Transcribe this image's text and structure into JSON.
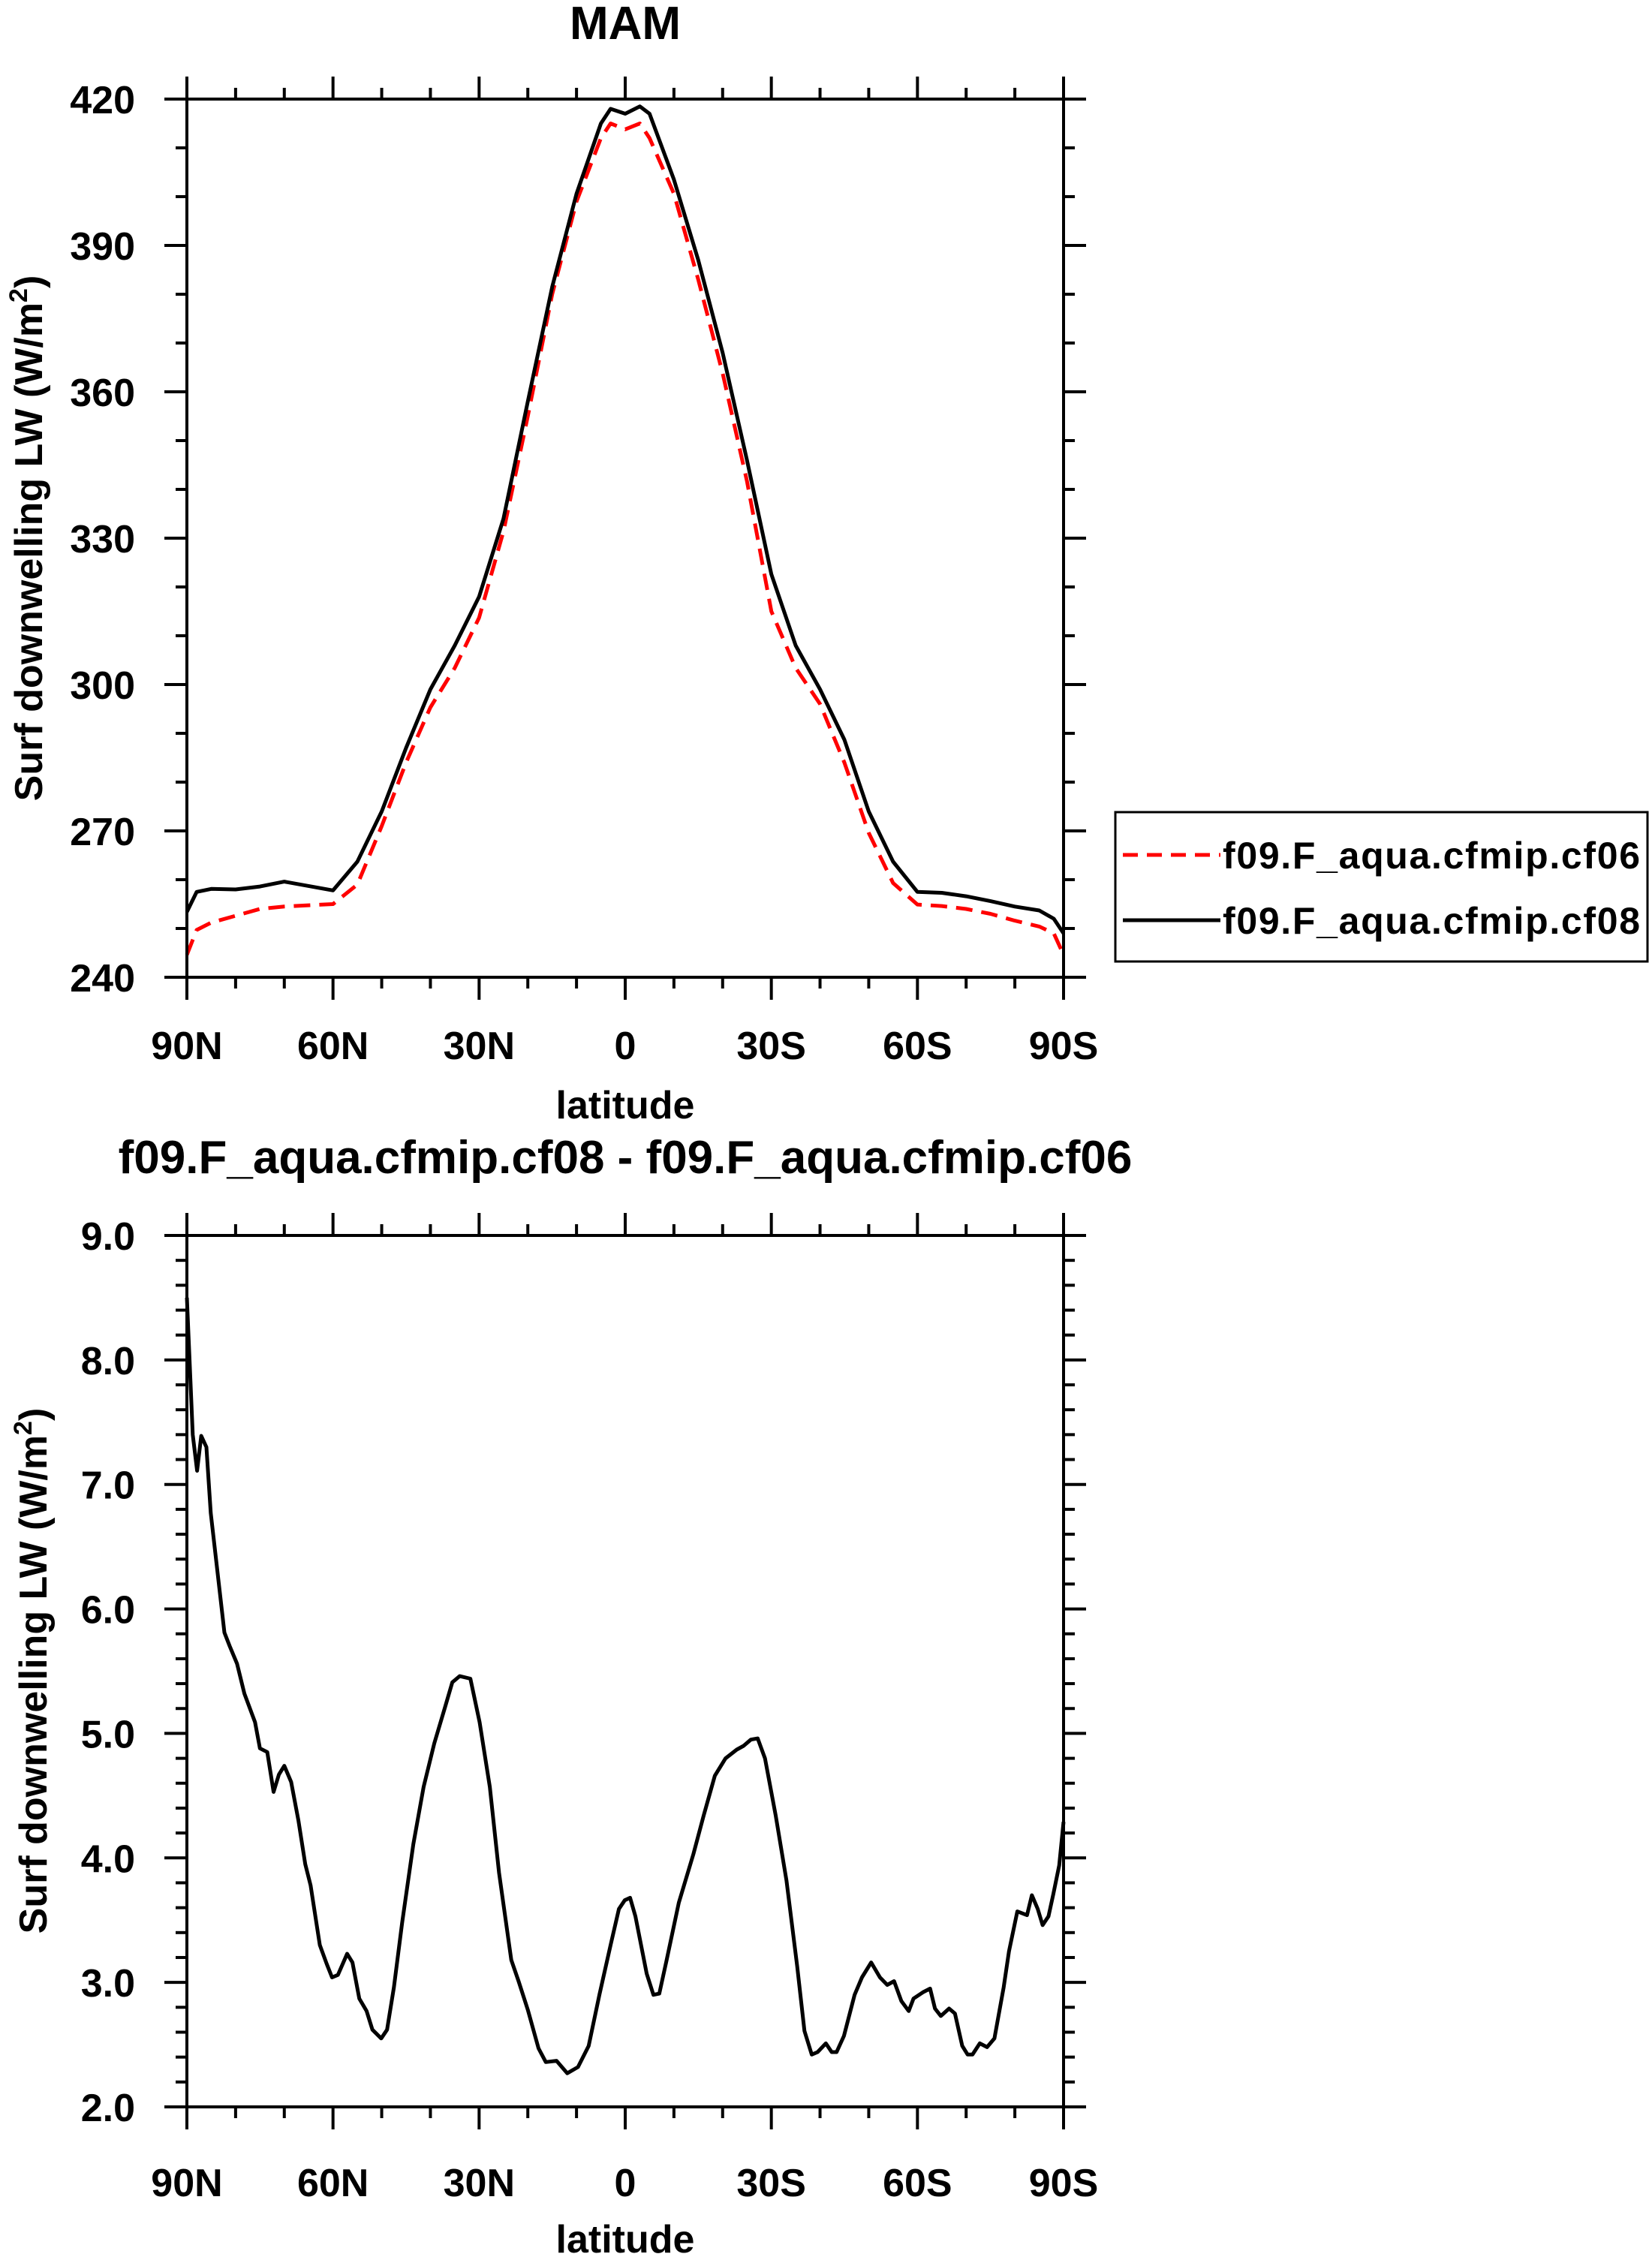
{
  "chart_data": [
    {
      "type": "line",
      "title": "MAM",
      "xlabel": "latitude",
      "ylabel": {
        "text": "Surf downwelling LW (W/m",
        "sup": "2",
        "end": ")"
      },
      "xlim": [
        90,
        -90
      ],
      "ylim": [
        240,
        420
      ],
      "xticks": [
        90,
        60,
        30,
        0,
        -30,
        -60,
        -90
      ],
      "xtick_labels": [
        "90N",
        "60N",
        "30N",
        "0",
        "30S",
        "60S",
        "90S"
      ],
      "yticks": [
        240,
        270,
        300,
        330,
        360,
        390,
        420
      ],
      "ytick_labels": [
        "240",
        "270",
        "300",
        "330",
        "360",
        "390",
        "420"
      ],
      "x_minor_step": 10,
      "y_minor_step": 10,
      "grid": false,
      "legend": {
        "placement": "right-outside",
        "entries": [
          "f09.F_aqua.cfmip.cf06",
          "f09.F_aqua.cfmip.cf08"
        ]
      },
      "series": [
        {
          "name": "f09.F_aqua.cfmip.cf06",
          "color": "#ff0000",
          "style": "dashed",
          "x": [
            90,
            88,
            85,
            80,
            75,
            70,
            60,
            55,
            50,
            45,
            40,
            35,
            30,
            25,
            20,
            15,
            10,
            5,
            3,
            0,
            -3,
            -5,
            -10,
            -15,
            -20,
            -25,
            -30,
            -35,
            -40,
            -45,
            -50,
            -55,
            -60,
            -65,
            -70,
            -75,
            -80,
            -85,
            -88,
            -90
          ],
          "y": [
            244.6,
            249.7,
            251.2,
            252.6,
            254.0,
            254.5,
            255.0,
            259.0,
            271.0,
            284.0,
            295.3,
            303.4,
            313.7,
            331.4,
            355.0,
            380.0,
            399.0,
            412.0,
            415.0,
            413.8,
            415.0,
            412.0,
            400.6,
            383.0,
            363.8,
            341.7,
            315.0,
            303.4,
            296.0,
            284.0,
            269.6,
            259.3,
            254.9,
            254.6,
            254.0,
            253.0,
            251.6,
            250.4,
            249.0,
            244.6
          ]
        },
        {
          "name": "f09.F_aqua.cfmip.cf08",
          "color": "#000000",
          "style": "solid",
          "x": [
            90,
            88,
            85,
            80,
            75,
            70,
            60,
            55,
            50,
            45,
            40,
            35,
            30,
            25,
            20,
            15,
            10,
            5,
            3,
            0,
            -3,
            -5,
            -10,
            -15,
            -20,
            -25,
            -30,
            -35,
            -40,
            -45,
            -50,
            -55,
            -60,
            -65,
            -70,
            -75,
            -80,
            -85,
            -88,
            -90
          ],
          "y": [
            253.4,
            257.5,
            258.1,
            258.0,
            258.6,
            259.6,
            257.8,
            263.7,
            274.0,
            287.0,
            299.0,
            308.0,
            318.0,
            334.0,
            358.0,
            381.5,
            400.6,
            415.0,
            418.0,
            417.0,
            418.5,
            417.0,
            403.5,
            387.0,
            368.0,
            346.0,
            322.6,
            308.0,
            299.0,
            288.7,
            274.0,
            263.7,
            257.5,
            257.3,
            256.6,
            255.6,
            254.5,
            253.7,
            252.0,
            249.0
          ]
        }
      ]
    },
    {
      "type": "line",
      "title": "f09.F_aqua.cfmip.cf08 - f09.F_aqua.cfmip.cf06",
      "xlabel": "latitude",
      "ylabel": {
        "text": "Surf downwelling LW (W/m",
        "sup": "2",
        "end": ")"
      },
      "xlim": [
        90,
        -90
      ],
      "ylim": [
        2.0,
        9.0
      ],
      "xticks": [
        90,
        60,
        30,
        0,
        -30,
        -60,
        -90
      ],
      "xtick_labels": [
        "90N",
        "60N",
        "30N",
        "0",
        "30S",
        "60S",
        "90S"
      ],
      "yticks": [
        2,
        3,
        4,
        5,
        6,
        7,
        8,
        9
      ],
      "ytick_labels": [
        "2.0",
        "3.0",
        "4.0",
        "5.0",
        "6.0",
        "7.0",
        "8.0",
        "9.0"
      ],
      "x_minor_step": 10,
      "y_minor_step": 0.2,
      "grid": false,
      "series": [
        {
          "name": "f09.F_aqua.cfmip.cf08 - f09.F_aqua.cfmip.cf06",
          "color": "#000000",
          "style": "solid",
          "x": [
            90,
            88.8,
            87.9,
            87.05,
            86,
            85.1,
            82.3,
            81.2,
            79.7,
            78.2,
            76,
            75,
            73.5,
            72.2,
            71.1,
            70,
            68.6,
            67.1,
            65.7,
            64.6,
            62.7,
            61.3,
            60.2,
            59,
            57.1,
            56,
            54.6,
            53.1,
            51.9,
            50.1,
            48.9,
            47.5,
            45.8,
            43.5,
            41.4,
            39.2,
            37,
            35.5,
            34,
            31.8,
            29.9,
            27.8,
            25.9,
            23.4,
            21.9,
            20,
            17.8,
            16.3,
            14.1,
            11.9,
            9.7,
            7.5,
            5.3,
            3.0,
            1.3,
            0.1,
            -1,
            -2.1,
            -4.4,
            -5.8,
            -7,
            -8.5,
            -11,
            -14,
            -16.1,
            -18.4,
            -20.6,
            -22.9,
            -24.3,
            -25.8,
            -27.2,
            -28.7,
            -30.9,
            -33.1,
            -35.3,
            -36.8,
            -38.3,
            -39.5,
            -41.2,
            -42.4,
            -43.4,
            -44.9,
            -47.1,
            -48.6,
            -50.5,
            -52.3,
            -53.8,
            -55.2,
            -56.7,
            -58.2,
            -59.2,
            -61.1,
            -62.6,
            -63.6,
            -64.8,
            -66.5,
            -67.7,
            -69.2,
            -70.3,
            -71.3,
            -72.8,
            -74.3,
            -75.8,
            -77.7,
            -78.8,
            -80.5,
            -82.5,
            -83.5,
            -84.7,
            -85.7,
            -86.9,
            -87.9,
            -89.1,
            -90
          ],
          "y": [
            8.5,
            7.4,
            7.11,
            7.39,
            7.3,
            6.77,
            5.81,
            5.7,
            5.56,
            5.32,
            5.09,
            4.88,
            4.85,
            4.53,
            4.67,
            4.74,
            4.61,
            4.3,
            3.95,
            3.78,
            3.3,
            3.15,
            3.04,
            3.06,
            3.23,
            3.16,
            2.87,
            2.77,
            2.62,
            2.55,
            2.62,
            2.96,
            3.48,
            4.11,
            4.57,
            4.92,
            5.21,
            5.41,
            5.46,
            5.44,
            5.09,
            4.57,
            3.88,
            3.18,
            3.01,
            2.78,
            2.47,
            2.36,
            2.37,
            2.27,
            2.32,
            2.49,
            2.9,
            3.3,
            3.59,
            3.66,
            3.68,
            3.53,
            3.07,
            2.9,
            2.91,
            3.18,
            3.64,
            4.03,
            4.34,
            4.66,
            4.8,
            4.87,
            4.9,
            4.95,
            4.96,
            4.8,
            4.34,
            3.82,
            3.13,
            2.61,
            2.42,
            2.44,
            2.51,
            2.44,
            2.44,
            2.57,
            2.9,
            3.04,
            3.16,
            3.04,
            2.98,
            3.01,
            2.85,
            2.77,
            2.87,
            2.92,
            2.95,
            2.79,
            2.73,
            2.79,
            2.75,
            2.49,
            2.42,
            2.42,
            2.51,
            2.48,
            2.55,
            2.96,
            3.25,
            3.57,
            3.54,
            3.7,
            3.59,
            3.46,
            3.53,
            3.71,
            3.94,
            4.29
          ]
        }
      ]
    }
  ]
}
